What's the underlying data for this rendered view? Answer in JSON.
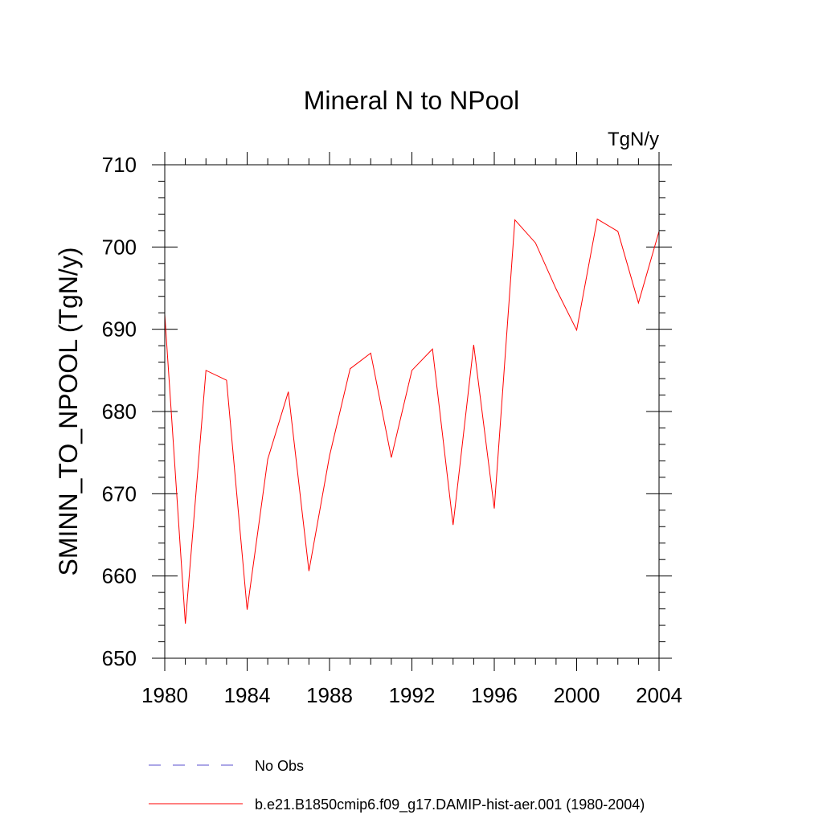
{
  "chart_data": {
    "type": "line",
    "title": "Mineral N to NPool",
    "units_label": "TgN/y",
    "ylabel": "SMINN_TO_NPOOL  (TgN/y)",
    "xlabel": "",
    "xlim": [
      1980,
      2004
    ],
    "ylim": [
      650,
      710
    ],
    "xticks": [
      1980,
      1984,
      1988,
      1992,
      1996,
      2000,
      2004
    ],
    "yticks": [
      650,
      660,
      670,
      680,
      690,
      700,
      710
    ],
    "xminor_step": 1,
    "yminor_step": 2,
    "grid": false,
    "legend_position": "bottom",
    "series": [
      {
        "name": "b.e21.B1850cmip6.f09_g17.DAMIP-hist-aer.001 (1980-2004)",
        "color": "#ff0000",
        "style": "solid",
        "x": [
          1980,
          1981,
          1982,
          1983,
          1984,
          1985,
          1986,
          1987,
          1988,
          1989,
          1990,
          1991,
          1992,
          1993,
          1994,
          1995,
          1996,
          1997,
          1998,
          1999,
          2000,
          2001,
          2002,
          2003,
          2004
        ],
        "y": [
          691.8,
          654.2,
          685.0,
          683.8,
          655.9,
          674.2,
          682.4,
          660.6,
          674.6,
          685.2,
          687.1,
          674.4,
          685.0,
          687.6,
          666.2,
          688.1,
          668.2,
          703.3,
          700.5,
          694.9,
          689.9,
          703.4,
          701.9,
          693.2,
          701.9
        ]
      }
    ],
    "legend": [
      {
        "label": "No Obs",
        "color": "#5a4fcf",
        "style": "dashed"
      },
      {
        "label": "b.e21.B1850cmip6.f09_g17.DAMIP-hist-aer.001 (1980-2004)",
        "color": "#ff0000",
        "style": "solid"
      }
    ]
  }
}
